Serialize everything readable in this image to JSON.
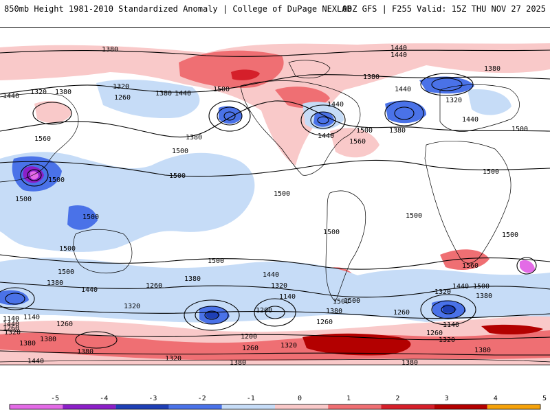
{
  "header": {
    "left_title": "850mb Height 1981-2010 Standardized Anomaly | College of DuPage NEXLAB",
    "right_title": "00Z GFS | F255 Valid: 15Z THU NOV 27 2025"
  },
  "colors": {
    "ocean": "#ffffff",
    "land_outline": "#000000",
    "neg5": "#e36be6",
    "neg4": "#8b1fc7",
    "neg3": "#1e3fb5",
    "neg2": "#4a72e8",
    "neg1": "#c6dcf7",
    "pos1": "#f9c9c9",
    "pos2": "#ef6f73",
    "pos3": "#d51f2a",
    "pos4": "#b30000",
    "pos5": "#f5a20a"
  },
  "colorbar": {
    "ticks": [
      "-5",
      "-4",
      "-3",
      "-2",
      "-1",
      "0",
      "1",
      "2",
      "3",
      "4",
      "5"
    ]
  },
  "contour_labels": [
    "1380",
    "1440",
    "1440",
    "1380",
    "1320",
    "1380",
    "1260",
    "1380",
    "1440",
    "1320",
    "1440",
    "1440",
    "1500",
    "1380",
    "1380",
    "1440",
    "1320",
    "1440",
    "1500",
    "1380",
    "1560",
    "1500",
    "1500",
    "1440",
    "1560",
    "1500",
    "1500",
    "1500",
    "1500",
    "1500",
    "1500",
    "1500",
    "1500",
    "1500",
    "1380",
    "1440",
    "1260",
    "1380",
    "1440",
    "1320",
    "1140",
    "1320",
    "1200",
    "1140",
    "1500",
    "1500",
    "1560",
    "1440",
    "1500",
    "1380",
    "1320",
    "1260",
    "1140",
    "1260",
    "1320",
    "1260",
    "1380",
    "1380",
    "1380",
    "1320",
    "1200",
    "1260",
    "1320",
    "1260",
    "1380",
    "1380",
    "1440",
    "1380",
    "1440",
    "1140",
    "1260",
    "1380",
    "1320",
    "1500",
    "1500",
    "1500"
  ]
}
